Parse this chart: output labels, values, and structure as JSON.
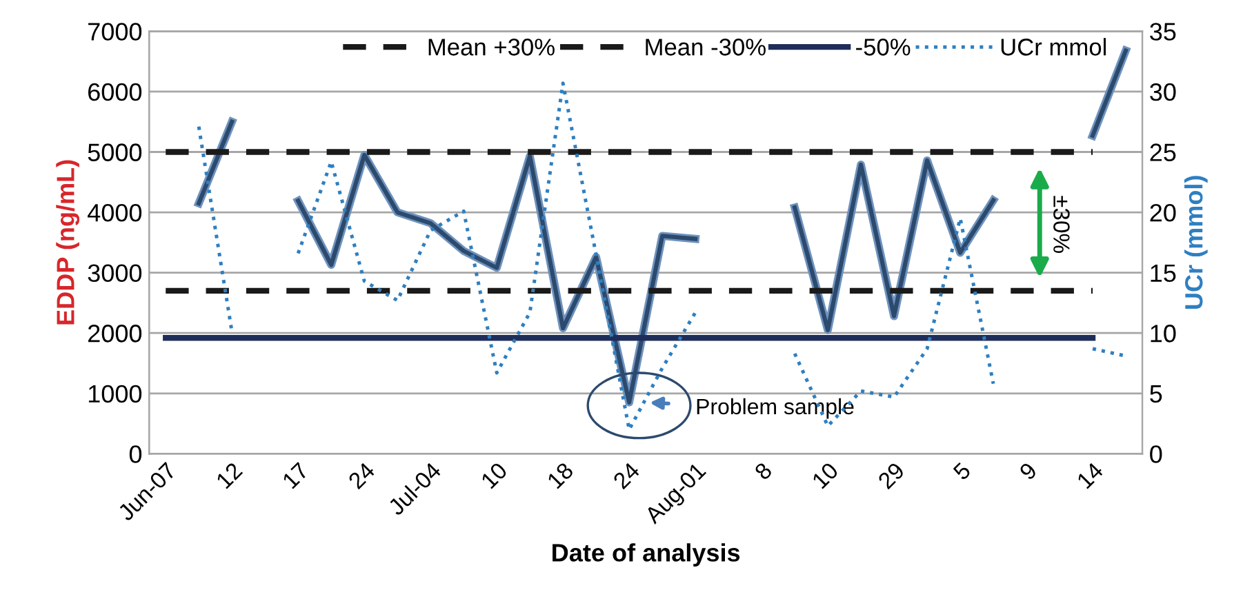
{
  "chart_data": {
    "type": "line",
    "xlabel": "Date of analysis",
    "ylabel": "EDDP (ng/mL)",
    "y2label": "UCr (mmol)",
    "categories": [
      "Jun-07",
      null,
      "12",
      null,
      "17",
      null,
      "24",
      null,
      "Jul-04",
      null,
      "10",
      null,
      "18",
      null,
      "24",
      null,
      "Aug-01",
      null,
      "8",
      null,
      "10",
      null,
      "29",
      null,
      "5",
      null,
      "9",
      null,
      "14",
      null
    ],
    "series": [
      {
        "color": "#2c4a6e",
        "line_style": "solid",
        "values": [
          null,
          4150,
          5500,
          null,
          4190,
          3130,
          4950,
          4000,
          3820,
          3360,
          3080,
          4930,
          2080,
          3260,
          850,
          3610,
          3560,
          null,
          null,
          4080,
          2050,
          4790,
          2280,
          4860,
          3330,
          4200,
          null,
          null,
          5270,
          6680
        ]
      },
      {
        "name": "Mean +30%",
        "color": "#1a1a1a",
        "line_style": "dashed",
        "values": [
          5000,
          5000,
          5000,
          5000,
          5000,
          5000,
          5000,
          5000,
          5000,
          5000,
          5000,
          5000,
          5000,
          5000,
          5000,
          5000,
          5000,
          5000,
          5000,
          5000,
          5000,
          5000,
          5000,
          5000,
          5000,
          5000,
          5000,
          5000,
          5000,
          null
        ]
      },
      {
        "name": "Mean -30%",
        "color": "#1a1a1a",
        "line_style": "dashed",
        "values": [
          2700,
          2700,
          2700,
          2700,
          2700,
          2700,
          2700,
          2700,
          2700,
          2700,
          2700,
          2700,
          2700,
          2700,
          2700,
          2700,
          2700,
          2700,
          2700,
          2700,
          2700,
          2700,
          2700,
          2700,
          2700,
          2700,
          2700,
          2700,
          2700,
          null
        ]
      },
      {
        "name": "-50%",
        "color": "#1f2d5a",
        "line_style": "solid",
        "values": [
          1920,
          1920,
          1920,
          1920,
          1920,
          1920,
          1920,
          1920,
          1920,
          1920,
          1920,
          1920,
          1920,
          1920,
          1920,
          1920,
          1920,
          1920,
          1920,
          1920,
          1920,
          1920,
          1920,
          1920,
          1920,
          1920,
          1920,
          1920,
          1920,
          null
        ]
      },
      {
        "name": "UCr mmol",
        "color": "#2e7fc1",
        "line_style": "dotted",
        "axis": "y2",
        "values": [
          null,
          27.1,
          10.1,
          null,
          16.6,
          24.2,
          14.3,
          12.7,
          18.5,
          20.1,
          6.7,
          11.7,
          30.7,
          16.5,
          2.0,
          7.1,
          11.7,
          null,
          null,
          8.3,
          2.3,
          5.2,
          4.7,
          8.7,
          19.5,
          5.8,
          null,
          null,
          8.7,
          8.1
        ]
      }
    ],
    "ylim": [
      0,
      7000
    ],
    "yticks": [
      0,
      1000,
      2000,
      3000,
      4000,
      5000,
      6000,
      7000
    ],
    "y2lim": [
      0,
      35
    ],
    "y2ticks": [
      0,
      5,
      10,
      15,
      20,
      25,
      30,
      35
    ],
    "grid": "y",
    "legend": "top",
    "annotations": [
      "Problem sample",
      "±30%"
    ]
  }
}
